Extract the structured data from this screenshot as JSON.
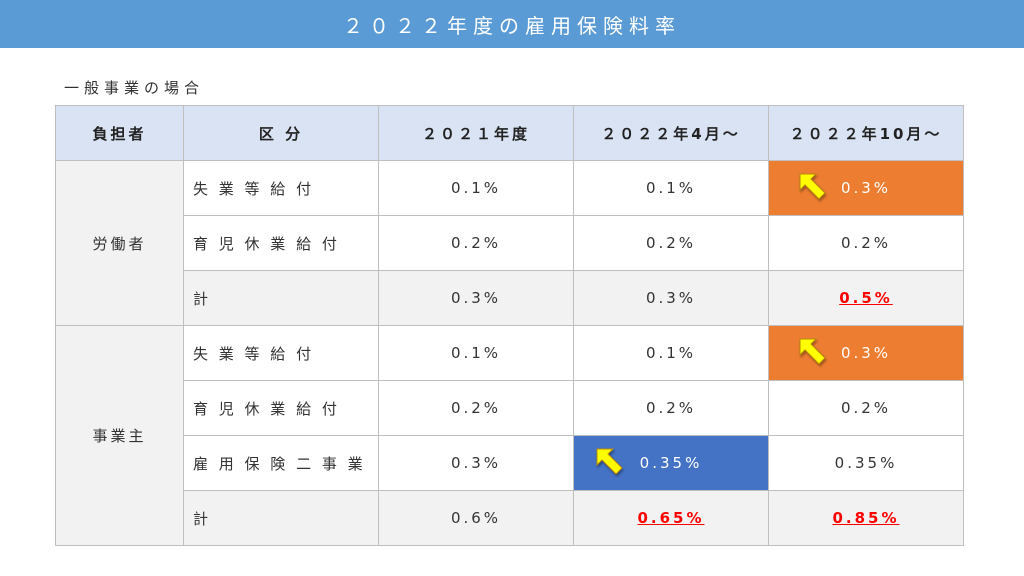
{
  "title": "２０２２年度の雇用保険料率",
  "subtitle": "一般事業の場合",
  "colors": {
    "title_bg": "#5b9bd5",
    "header_bg": "#dae3f3",
    "highlight_orange": "#ed7d31",
    "highlight_blue": "#4472c4",
    "emphasis_red": "#ff0000",
    "arrow": "#ffff00"
  },
  "table": {
    "headers": [
      "負担者",
      "区 分",
      "２０２１年度",
      "２０２２年4月～",
      "２０２２年10月～"
    ],
    "worker": {
      "label": "労働者",
      "rows": [
        {
          "category": "失 業 等 給 付",
          "v2021": "0.1%",
          "v2022apr": "0.1%",
          "v2022oct": "0.3%"
        },
        {
          "category": "育 児 休 業 給 付",
          "v2021": "0.2%",
          "v2022apr": "0.2%",
          "v2022oct": "0.2%"
        },
        {
          "category": "計",
          "v2021": "0.3%",
          "v2022apr": "0.3%",
          "v2022oct": "0.5%"
        }
      ]
    },
    "employer": {
      "label": "事業主",
      "rows": [
        {
          "category": "失 業 等 給 付",
          "v2021": "0.1%",
          "v2022apr": "0.1%",
          "v2022oct": "0.3%"
        },
        {
          "category": "育 児 休 業 給 付",
          "v2021": "0.2%",
          "v2022apr": "0.2%",
          "v2022oct": "0.2%"
        },
        {
          "category": "雇 用 保 険 二 事 業",
          "v2021": "0.3%",
          "v2022apr": "0.35%",
          "v2022oct": "0.35%"
        },
        {
          "category": "計",
          "v2021": "0.6%",
          "v2022apr": "0.65%",
          "v2022oct": "0.85%"
        }
      ]
    }
  }
}
